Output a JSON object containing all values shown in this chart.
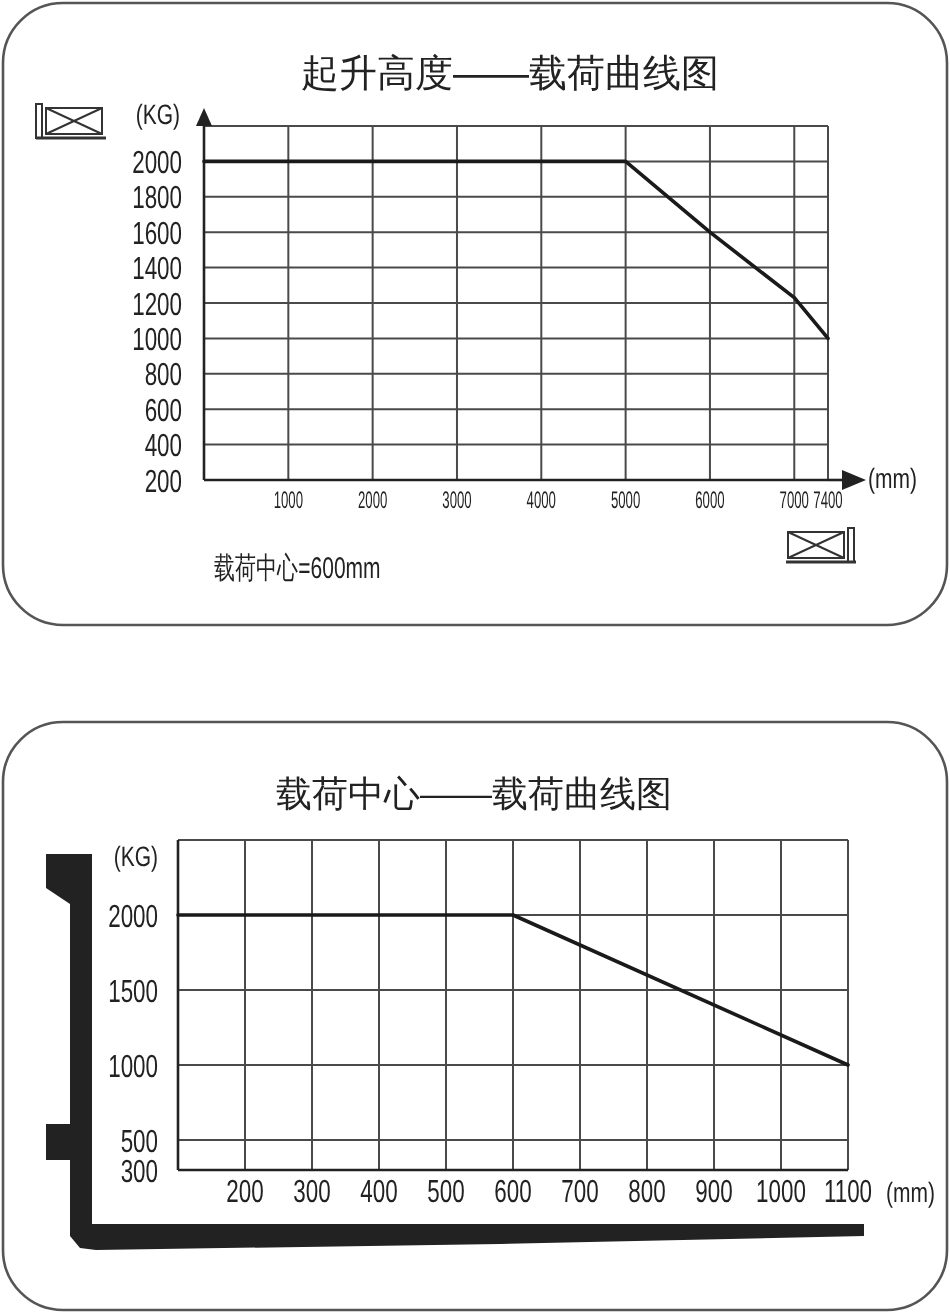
{
  "chart_data": [
    {
      "type": "line",
      "title": "起升高度——载荷曲线图",
      "xlabel": "(mm)",
      "ylabel": "(KG)",
      "x": [
        0,
        5000,
        6000,
        7000,
        7400
      ],
      "values": [
        2000,
        2000,
        1600,
        1230,
        1000
      ],
      "color": "#1a1a1a",
      "xlim": [
        0,
        7400
      ],
      "xticks": [
        1000,
        2000,
        3000,
        4000,
        5000,
        6000,
        7000,
        7400
      ],
      "ylim": [
        200,
        2200
      ],
      "yticks": [
        200,
        400,
        600,
        800,
        1000,
        1200,
        1400,
        1600,
        1800,
        2000
      ],
      "grid": true,
      "annotations": [
        "载荷中心=600mm"
      ]
    },
    {
      "type": "line",
      "title": "载荷中心——载荷曲线图",
      "xlabel": "(mm)",
      "ylabel": "(KG)",
      "x": [
        100,
        600,
        1100
      ],
      "values": [
        2000,
        2000,
        1000
      ],
      "color": "#1a1a1a",
      "xlim": [
        100,
        1100
      ],
      "xticks": [
        200,
        300,
        400,
        500,
        600,
        700,
        800,
        900,
        1000,
        1100
      ],
      "ylim": [
        300,
        2500
      ],
      "yticks": [
        300,
        500,
        1000,
        1500,
        2000
      ],
      "grid": true
    }
  ]
}
